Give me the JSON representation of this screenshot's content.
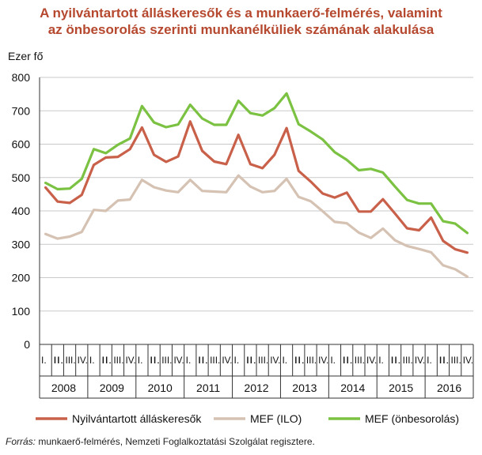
{
  "title": {
    "line1": "A nyilvántartott álláskeresők és a munkaerő-felmérés, valamint",
    "line2": "az önbesorolás szerinti munkanélküliek számának alakulása"
  },
  "source": {
    "label": "Forrás:",
    "text": " munkaerő-felmérés, Nemzeti Foglalkoztatási Szolgálat regisztere."
  },
  "chart_data": {
    "type": "line",
    "ylabel": "Ezer fő",
    "ylim": [
      0,
      800
    ],
    "yticks": [
      0,
      100,
      200,
      300,
      400,
      500,
      600,
      700,
      800
    ],
    "grid": true,
    "legend_position": "bottom",
    "quarter_labels": [
      "I.",
      "II.",
      "III.",
      "IV."
    ],
    "years": [
      "2008",
      "2009",
      "2010",
      "2011",
      "2012",
      "2013",
      "2014",
      "2015",
      "2016"
    ],
    "series": [
      {
        "name": "Nyilvántartott álláskeresők",
        "color": "#c8604a",
        "values": [
          470,
          428,
          424,
          448,
          538,
          560,
          562,
          585,
          650,
          568,
          547,
          563,
          668,
          580,
          548,
          540,
          628,
          540,
          528,
          568,
          648,
          520,
          488,
          452,
          440,
          455,
          398,
          398,
          435,
          392,
          348,
          342,
          380,
          310,
          285,
          275
        ]
      },
      {
        "name": "MEF (ILO)",
        "color": "#d5c2b3",
        "values": [
          331,
          317,
          323,
          337,
          403,
          400,
          431,
          434,
          493,
          471,
          461,
          456,
          493,
          460,
          458,
          456,
          506,
          473,
          456,
          460,
          496,
          442,
          429,
          399,
          367,
          363,
          335,
          319,
          347,
          312,
          295,
          286,
          276,
          237,
          225,
          203
        ]
      },
      {
        "name": "MEF (önbesorolás)",
        "color": "#7bc142",
        "values": [
          484,
          465,
          467,
          496,
          585,
          573,
          598,
          617,
          714,
          665,
          651,
          659,
          718,
          677,
          658,
          658,
          730,
          693,
          686,
          708,
          752,
          660,
          638,
          614,
          576,
          553,
          522,
          526,
          515,
          473,
          433,
          422,
          422,
          369,
          362,
          334
        ]
      }
    ]
  }
}
